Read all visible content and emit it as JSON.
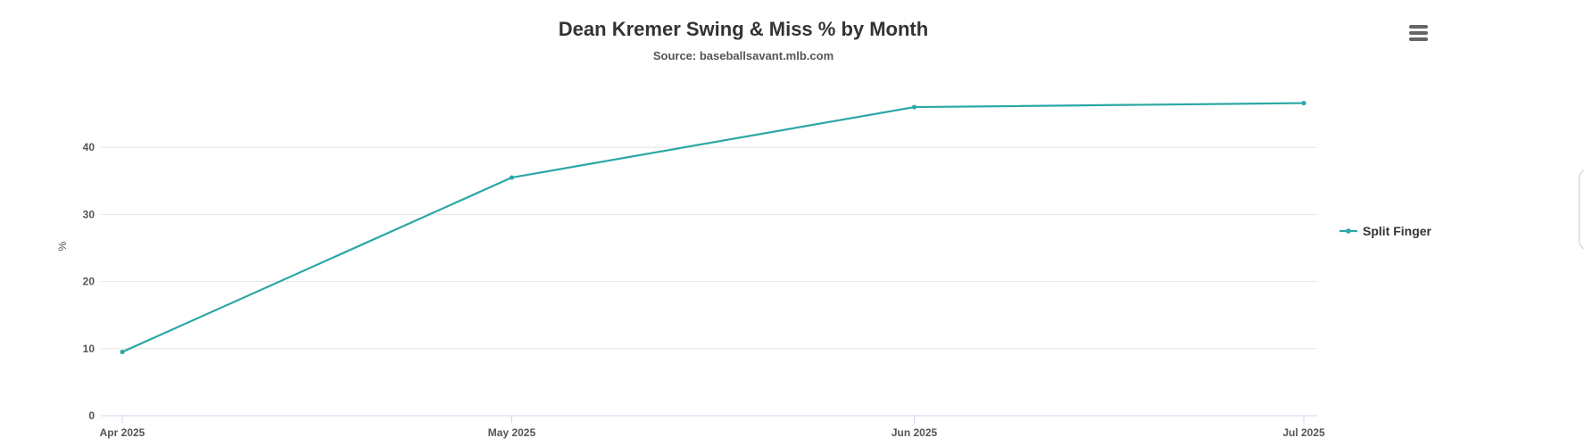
{
  "chart_data": {
    "type": "line",
    "title": "Dean Kremer Swing & Miss % by Month",
    "subtitle": "Source: baseballsavant.mlb.com",
    "ylabel": "%",
    "xlabel": "",
    "categories": [
      "Apr 2025",
      "May 2025",
      "Jun 2025",
      "Jul 2025"
    ],
    "x_dates": [
      "2025-04-01",
      "2025-05-01",
      "2025-06-01",
      "2025-07-01"
    ],
    "series": [
      {
        "name": "Split Finger",
        "color": "#2ba8a5",
        "values": [
          9.5,
          35.5,
          46.0,
          46.6
        ]
      }
    ],
    "ylim": [
      0,
      50
    ],
    "yticks": [
      0,
      10,
      20,
      30,
      40
    ],
    "grid": true,
    "legend_position": "right"
  },
  "menu": {
    "icon": "hamburger-menu-icon"
  }
}
